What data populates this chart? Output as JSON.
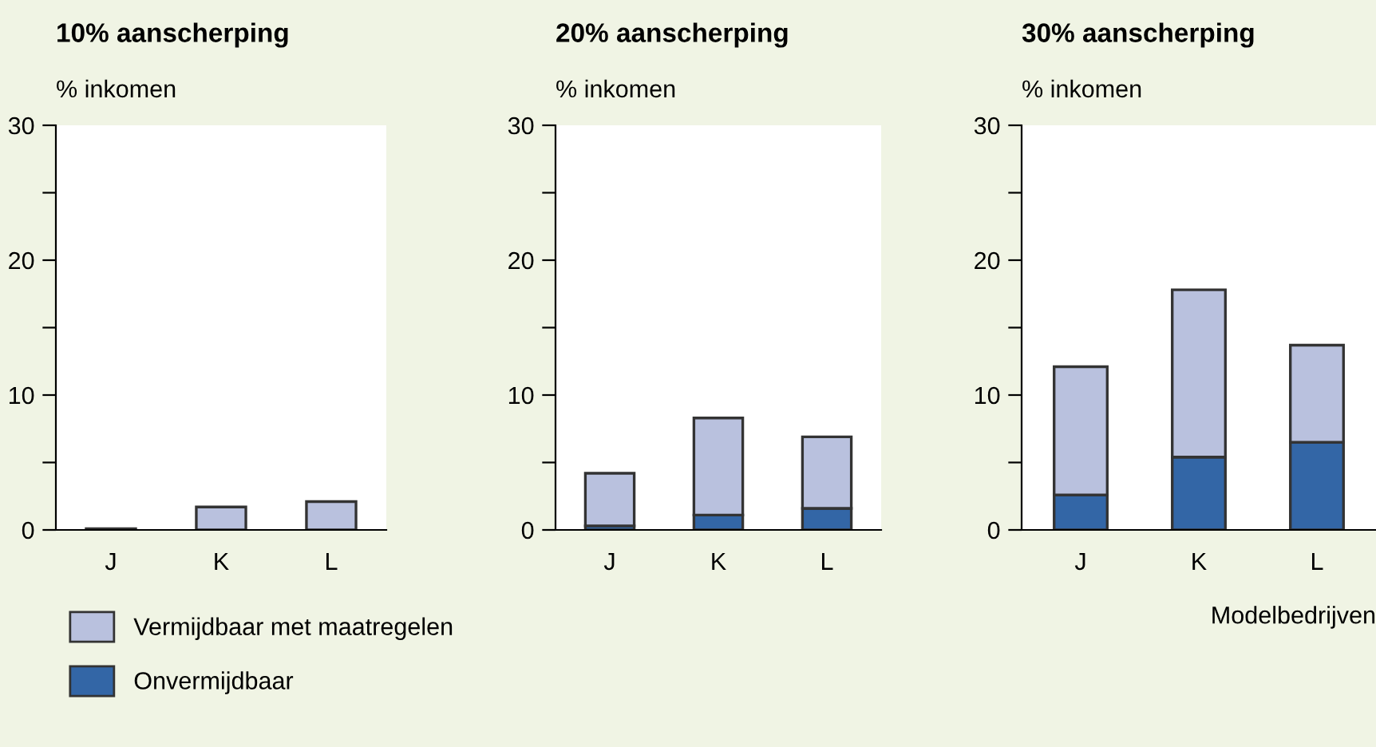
{
  "chart_data": [
    {
      "type": "bar",
      "title": "10% aanscherping",
      "ylabel": "% inkomen",
      "categories": [
        "J",
        "K",
        "L"
      ],
      "stacked": true,
      "legend": "bottom",
      "ylim": [
        0,
        30
      ],
      "yticks": [
        0,
        {
          "value": 5,
          "label": null
        },
        10,
        {
          "value": 15,
          "label": null
        },
        20,
        {
          "value": 25,
          "label": null
        },
        30
      ],
      "series": [
        {
          "name": "Onvermijdbaar",
          "color": "#3366a6",
          "values": [
            0,
            0,
            0
          ]
        },
        {
          "name": "Vermijdbaar met maatregelen",
          "color": "#b9c1de",
          "values": [
            0.1,
            1.7,
            2.1
          ]
        }
      ]
    },
    {
      "type": "bar",
      "title": "20% aanscherping",
      "ylabel": "% inkomen",
      "categories": [
        "J",
        "K",
        "L"
      ],
      "stacked": true,
      "ylim": [
        0,
        30
      ],
      "yticks": [
        0,
        {
          "value": 5,
          "label": null
        },
        10,
        {
          "value": 15,
          "label": null
        },
        20,
        {
          "value": 25,
          "label": null
        },
        30
      ],
      "series": [
        {
          "color": "#3366a6",
          "values": [
            0.3,
            1.1,
            1.6
          ]
        },
        {
          "color": "#b9c1de",
          "values": [
            3.9,
            7.2,
            5.3
          ]
        }
      ]
    },
    {
      "type": "bar",
      "title": "30% aanscherping",
      "ylabel": "% inkomen",
      "xlabel": "Modelbedrijven",
      "categories": [
        "J",
        "K",
        "L"
      ],
      "stacked": true,
      "ylim": [
        0,
        30
      ],
      "yticks": [
        0,
        {
          "value": 5,
          "label": null
        },
        10,
        {
          "value": 15,
          "label": null
        },
        20,
        {
          "value": 25,
          "label": null
        },
        30
      ],
      "series": [
        {
          "color": "#3366a6",
          "values": [
            2.6,
            5.4,
            6.5
          ]
        },
        {
          "color": "#b9c1de",
          "values": [
            9.5,
            12.4,
            7.2
          ]
        }
      ]
    }
  ]
}
